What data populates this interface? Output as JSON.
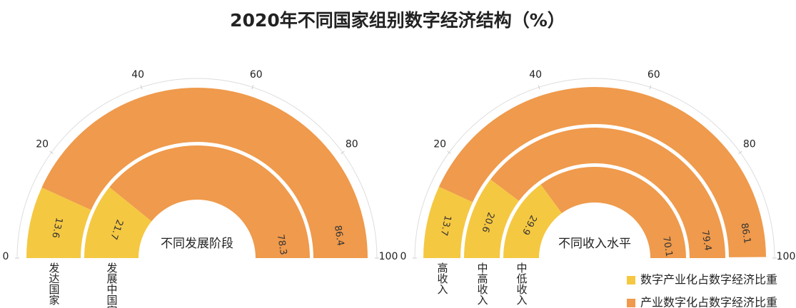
{
  "title": "2020年不同国家组别数字经济结构（%）",
  "chart_data": [
    {
      "type": "radial_bar",
      "center_label": "不同发展阶段",
      "categories": [
        "发达国家",
        "发展中国家"
      ],
      "series": [
        {
          "name": "数字产业化占数字经济比重",
          "color": "#f5c842",
          "values": [
            13.6,
            21.7
          ]
        },
        {
          "name": "产业数字化占数字经济比重",
          "color": "#ef9a4c",
          "values": [
            86.4,
            78.3
          ]
        }
      ],
      "ylim": [
        0,
        100
      ],
      "yticks": [
        0,
        20,
        40,
        60,
        80,
        100
      ]
    },
    {
      "type": "radial_bar",
      "center_label": "不同收入水平",
      "categories": [
        "高收入",
        "中高收入",
        "中低收入"
      ],
      "series": [
        {
          "name": "数字产业化占数字经济比重",
          "color": "#f5c842",
          "values": [
            13.7,
            20.6,
            29.9
          ]
        },
        {
          "name": "产业数字化占数字经济比重",
          "color": "#ef9a4c",
          "values": [
            86.1,
            79.4,
            70.1
          ]
        }
      ],
      "ylim": [
        0,
        100
      ],
      "yticks": [
        0,
        20,
        40,
        60,
        80,
        100
      ]
    }
  ]
}
